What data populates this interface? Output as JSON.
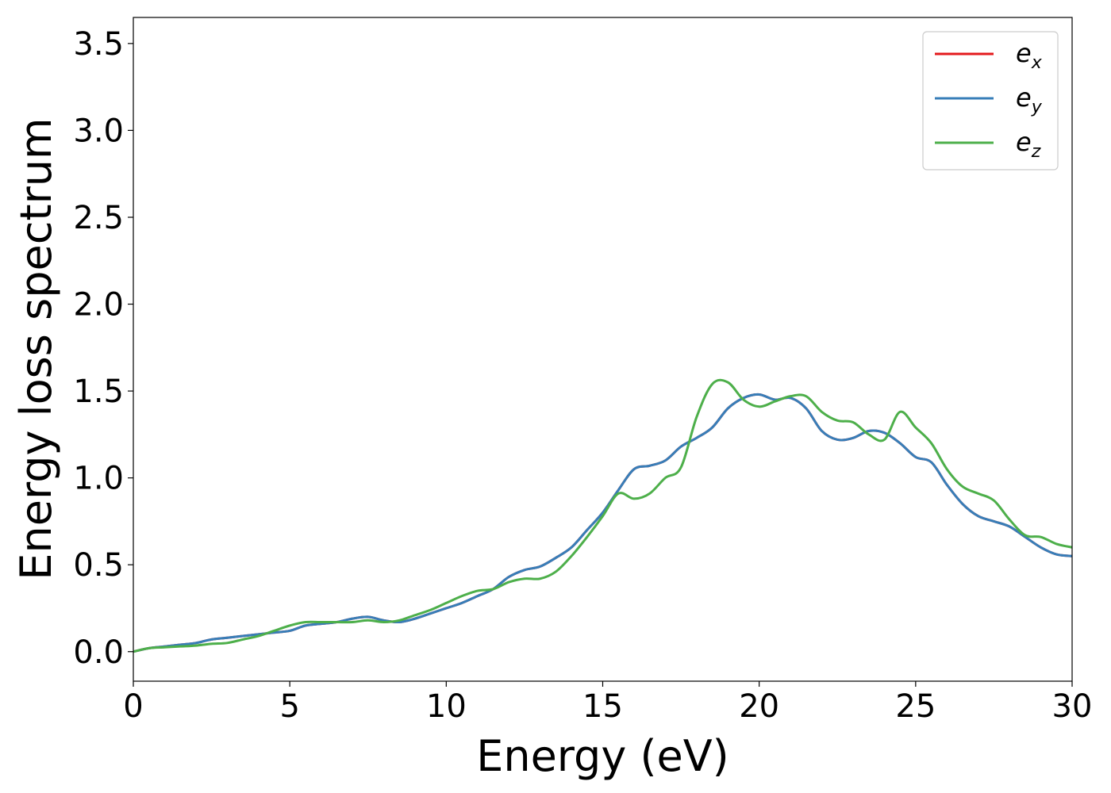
{
  "chart_data": {
    "type": "line",
    "xlabel": "Energy (eV)",
    "ylabel": "Energy loss spectrum",
    "xlim": [
      0,
      30
    ],
    "ylim": [
      -0.17,
      3.65
    ],
    "xticks": [
      "0",
      "5",
      "10",
      "15",
      "20",
      "25",
      "30"
    ],
    "yticks": [
      "0.0",
      "0.5",
      "1.0",
      "1.5",
      "2.0",
      "2.5",
      "3.0",
      "3.5"
    ],
    "grid": false,
    "legend_position": "top-right",
    "series": [
      {
        "name": "e_x",
        "legend_base": "e",
        "legend_sub": "x",
        "color": "#e41a1c",
        "x": [
          0,
          0.5,
          1,
          1.5,
          2,
          2.5,
          3,
          3.5,
          4,
          4.5,
          5,
          5.5,
          6,
          6.5,
          7,
          7.5,
          8,
          8.5,
          9,
          9.5,
          10,
          10.5,
          11,
          11.5,
          12,
          12.5,
          13,
          13.5,
          14,
          14.5,
          15,
          15.5,
          16,
          16.5,
          17,
          17.5,
          18,
          18.5,
          19,
          19.5,
          20,
          20.5,
          21,
          21.5,
          22,
          22.5,
          23,
          23.5,
          24,
          24.5,
          25,
          25.5,
          26,
          26.5,
          27,
          27.5,
          28,
          28.5,
          29,
          29.5,
          30
        ],
        "y": [
          0.0,
          0.02,
          0.03,
          0.04,
          0.05,
          0.07,
          0.08,
          0.09,
          0.1,
          0.11,
          0.12,
          0.15,
          0.16,
          0.17,
          0.19,
          0.2,
          0.18,
          0.17,
          0.19,
          0.22,
          0.25,
          0.28,
          0.32,
          0.36,
          0.43,
          0.47,
          0.49,
          0.54,
          0.6,
          0.7,
          0.8,
          0.93,
          1.05,
          1.07,
          1.1,
          1.18,
          1.23,
          1.29,
          1.4,
          1.46,
          1.48,
          1.45,
          1.46,
          1.4,
          1.27,
          1.22,
          1.23,
          1.27,
          1.26,
          1.2,
          1.12,
          1.09,
          0.96,
          0.85,
          0.78,
          0.75,
          0.72,
          0.66,
          0.6,
          0.56,
          0.55
        ]
      },
      {
        "name": "e_y",
        "legend_base": "e",
        "legend_sub": "y",
        "color": "#377eb8",
        "x": [
          0,
          0.5,
          1,
          1.5,
          2,
          2.5,
          3,
          3.5,
          4,
          4.5,
          5,
          5.5,
          6,
          6.5,
          7,
          7.5,
          8,
          8.5,
          9,
          9.5,
          10,
          10.5,
          11,
          11.5,
          12,
          12.5,
          13,
          13.5,
          14,
          14.5,
          15,
          15.5,
          16,
          16.5,
          17,
          17.5,
          18,
          18.5,
          19,
          19.5,
          20,
          20.5,
          21,
          21.5,
          22,
          22.5,
          23,
          23.5,
          24,
          24.5,
          25,
          25.5,
          26,
          26.5,
          27,
          27.5,
          28,
          28.5,
          29,
          29.5,
          30
        ],
        "y": [
          0.0,
          0.02,
          0.03,
          0.04,
          0.05,
          0.07,
          0.08,
          0.09,
          0.1,
          0.11,
          0.12,
          0.15,
          0.16,
          0.17,
          0.19,
          0.2,
          0.18,
          0.17,
          0.19,
          0.22,
          0.25,
          0.28,
          0.32,
          0.36,
          0.43,
          0.47,
          0.49,
          0.54,
          0.6,
          0.7,
          0.8,
          0.93,
          1.05,
          1.07,
          1.1,
          1.18,
          1.23,
          1.29,
          1.4,
          1.46,
          1.48,
          1.45,
          1.46,
          1.4,
          1.27,
          1.22,
          1.23,
          1.27,
          1.26,
          1.2,
          1.12,
          1.09,
          0.96,
          0.85,
          0.78,
          0.75,
          0.72,
          0.66,
          0.6,
          0.56,
          0.55
        ]
      },
      {
        "name": "e_z",
        "legend_base": "e",
        "legend_sub": "z",
        "color": "#4daf4a",
        "x": [
          0,
          0.5,
          1,
          1.5,
          2,
          2.5,
          3,
          3.5,
          4,
          4.5,
          5,
          5.5,
          6,
          6.5,
          7,
          7.5,
          8,
          8.5,
          9,
          9.5,
          10,
          10.5,
          11,
          11.5,
          12,
          12.5,
          13,
          13.5,
          14,
          14.5,
          15,
          15.5,
          16,
          16.5,
          17,
          17.5,
          18,
          18.5,
          19,
          19.5,
          20,
          20.5,
          21,
          21.5,
          22,
          22.5,
          23,
          23.5,
          24,
          24.5,
          25,
          25.5,
          26,
          26.5,
          27,
          27.5,
          28,
          28.5,
          29,
          29.5,
          30
        ],
        "y": [
          0.0,
          0.02,
          0.025,
          0.03,
          0.035,
          0.045,
          0.05,
          0.07,
          0.09,
          0.12,
          0.15,
          0.17,
          0.17,
          0.17,
          0.17,
          0.18,
          0.17,
          0.18,
          0.21,
          0.24,
          0.28,
          0.32,
          0.35,
          0.36,
          0.4,
          0.42,
          0.42,
          0.46,
          0.55,
          0.66,
          0.78,
          0.91,
          0.88,
          0.91,
          1.0,
          1.06,
          1.35,
          1.54,
          1.55,
          1.45,
          1.41,
          1.44,
          1.47,
          1.47,
          1.38,
          1.33,
          1.32,
          1.25,
          1.22,
          1.38,
          1.29,
          1.2,
          1.05,
          0.95,
          0.91,
          0.87,
          0.76,
          0.67,
          0.66,
          0.62,
          0.6
        ]
      }
    ]
  }
}
